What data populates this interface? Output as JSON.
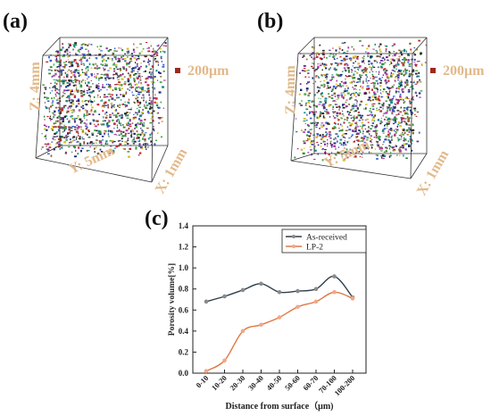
{
  "panels": {
    "a": {
      "label": "(a)",
      "scale_label": "200μm",
      "axis_z": "Z: 4mm",
      "axis_y": "Y: 5mm",
      "axis_x": "X: 1mm"
    },
    "b": {
      "label": "(b)",
      "scale_label": "200μm",
      "axis_z": "Z: 4mm",
      "axis_y": "Y: 5mm",
      "axis_x": "X: 1mm"
    },
    "c": {
      "label": "(c)"
    }
  },
  "colors": {
    "axis_label": "#e2b98a",
    "scale_marker": "#a0281a",
    "series_as_received": "#2d3f4d",
    "series_lp2": "#e07845"
  },
  "chart_data": {
    "type": "line",
    "title": "",
    "xlabel": "Distance from surface（μm)",
    "ylabel": "Porosity volume[%]",
    "categories": [
      "0-10",
      "10-20",
      "20-30",
      "30-40",
      "40-50",
      "50-60",
      "60-70",
      "70-100",
      "100-200"
    ],
    "ylim": [
      0.0,
      1.4
    ],
    "yticks": [
      "0.0",
      "0.2",
      "0.4",
      "0.6",
      "0.8",
      "1.0",
      "1.2",
      "1.4"
    ],
    "legend_position": "top-right",
    "series": [
      {
        "name": "As-received",
        "values": [
          0.68,
          0.73,
          0.79,
          0.85,
          0.77,
          0.78,
          0.8,
          0.92,
          0.72
        ]
      },
      {
        "name": "LP-2",
        "values": [
          0.02,
          0.12,
          0.4,
          0.46,
          0.53,
          0.63,
          0.68,
          0.77,
          0.71
        ]
      }
    ]
  }
}
